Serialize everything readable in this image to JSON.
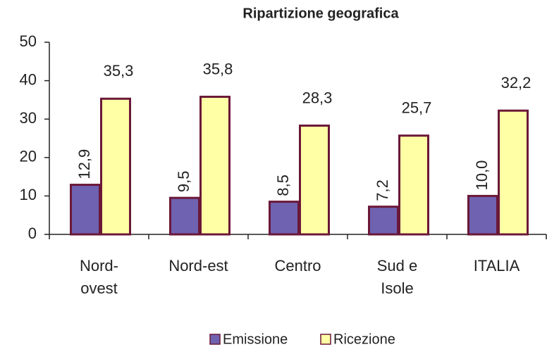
{
  "chart_data": {
    "type": "bar",
    "title": "Ripartizione geografica",
    "categories": [
      "Nord-\novest",
      "Nord-est",
      "Centro",
      "Sud e\nIsole",
      "ITALIA"
    ],
    "series": [
      {
        "name": "Emissione",
        "color": "#6f62b0",
        "values": [
          12.9,
          9.5,
          8.5,
          7.2,
          10.0
        ],
        "value_labels": [
          "12,9",
          "9,5",
          "8,5",
          "7,2",
          "10,0"
        ]
      },
      {
        "name": "Ricezione",
        "color": "#ffffa6",
        "values": [
          35.3,
          35.8,
          28.3,
          25.7,
          32.2
        ],
        "value_labels": [
          "35,3",
          "35,8",
          "28,3",
          "25,7",
          "32,2"
        ]
      }
    ],
    "ylim": [
      0,
      50
    ],
    "yticks": [
      0,
      10,
      20,
      30,
      40,
      50
    ],
    "legend": "bottom",
    "border_color": "#6b1838"
  }
}
